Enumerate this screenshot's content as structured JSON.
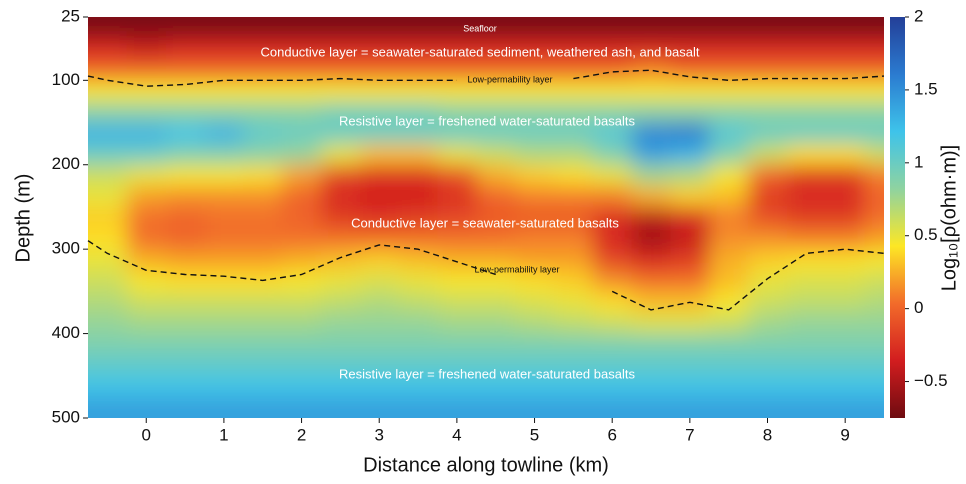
{
  "chart_data": {
    "type": "heatmap",
    "xlabel": "Distance along towline (km)",
    "ylabel": "Depth (m)",
    "colorbar_label": "Log₁₀[ρ(ohm·m)]",
    "xlim": [
      -0.75,
      9.5
    ],
    "xticks": [
      0,
      1,
      2,
      3,
      4,
      5,
      6,
      7,
      8,
      9
    ],
    "ylim": [
      500,
      25
    ],
    "yticks": [
      25,
      100,
      200,
      300,
      400,
      500
    ],
    "zlim": [
      -0.75,
      2
    ],
    "zticks": [
      {
        "value": -0.5,
        "label": "−0.5"
      },
      0,
      0.5,
      1,
      1.5,
      2
    ],
    "colormap": [
      "#6e0b10",
      "#d21d1f",
      "#f26b2a",
      "#fde725",
      "#8fd3a0",
      "#3ec3ea",
      "#2b7bd0",
      "#233f98"
    ],
    "x": [
      -0.5,
      0,
      0.5,
      1,
      1.5,
      2,
      2.5,
      3,
      3.5,
      4,
      4.5,
      5,
      5.5,
      6,
      6.5,
      7,
      7.5,
      8,
      8.5,
      9,
      9.5
    ],
    "y": [
      37.5,
      62.5,
      87.5,
      112.5,
      137.5,
      162.5,
      187.5,
      212.5,
      237.5,
      262.5,
      287.5,
      312.5,
      337.5,
      362.5,
      387.5,
      412.5,
      437.5,
      462.5,
      487.5
    ],
    "z": [
      [
        -0.7,
        -0.7,
        -0.7,
        -0.7,
        -0.7,
        -0.7,
        -0.7,
        -0.7,
        -0.7,
        -0.7,
        -0.7,
        -0.7,
        -0.7,
        -0.7,
        -0.7,
        -0.7,
        -0.7,
        -0.7,
        -0.7,
        -0.7,
        -0.7
      ],
      [
        -0.3,
        -0.4,
        -0.3,
        -0.3,
        -0.3,
        -0.3,
        -0.3,
        -0.3,
        -0.3,
        -0.3,
        -0.3,
        -0.3,
        -0.3,
        -0.3,
        -0.3,
        -0.3,
        -0.3,
        -0.3,
        -0.3,
        -0.3,
        -0.3
      ],
      [
        0,
        0,
        0,
        0,
        0,
        0,
        0,
        0,
        0,
        0,
        0,
        0,
        0,
        0,
        0.1,
        0,
        0,
        0,
        0,
        0,
        0
      ],
      [
        0.45,
        0.45,
        0.45,
        0.45,
        0.45,
        0.45,
        0.45,
        0.45,
        0.45,
        0.45,
        0.45,
        0.45,
        0.45,
        0.45,
        0.45,
        0.45,
        0.45,
        0.45,
        0.45,
        0.45,
        0.45
      ],
      [
        0.85,
        0.85,
        0.85,
        0.85,
        0.85,
        0.85,
        0.95,
        0.95,
        0.95,
        0.85,
        0.85,
        0.85,
        0.85,
        0.85,
        0.85,
        0.85,
        0.85,
        0.85,
        0.85,
        0.85,
        0.85
      ],
      [
        1.3,
        1.3,
        1.2,
        1.3,
        1.05,
        1.0,
        1.0,
        1.0,
        1.0,
        1.0,
        1.0,
        1.0,
        1.0,
        1.1,
        1.55,
        1.6,
        1.1,
        1.0,
        1.0,
        1.0,
        1.0
      ],
      [
        1.0,
        1.0,
        0.9,
        0.9,
        0.85,
        0.8,
        0.5,
        0.3,
        0.3,
        0.5,
        0.6,
        0.7,
        0.7,
        0.9,
        1.4,
        1.3,
        0.9,
        0.6,
        0.4,
        0.4,
        0.6
      ],
      [
        0.6,
        0.5,
        0.45,
        0.45,
        0.4,
        0.2,
        -0.15,
        -0.25,
        -0.25,
        -0.1,
        0.25,
        0.35,
        0.4,
        0.5,
        0.75,
        0.7,
        0.45,
        0.0,
        -0.2,
        -0.2,
        0.1
      ],
      [
        0.5,
        0.2,
        0.15,
        0.15,
        0.15,
        0.0,
        -0.3,
        -0.35,
        -0.35,
        -0.25,
        0.0,
        0.1,
        0.1,
        0.1,
        0.25,
        0.35,
        0.3,
        -0.2,
        -0.3,
        -0.3,
        0.0
      ],
      [
        0.35,
        0.05,
        0.0,
        0.05,
        0.05,
        0.0,
        -0.2,
        -0.25,
        -0.2,
        -0.15,
        -0.05,
        -0.05,
        -0.05,
        -0.25,
        -0.45,
        -0.3,
        0.1,
        -0.1,
        -0.2,
        -0.2,
        0.05
      ],
      [
        0.4,
        0.05,
        0.0,
        0.05,
        0.05,
        0.05,
        0.05,
        0.05,
        0.05,
        0.05,
        0.05,
        0.1,
        0.1,
        -0.3,
        -0.55,
        -0.4,
        0.15,
        0.15,
        0.1,
        0.1,
        0.2
      ],
      [
        0.5,
        0.25,
        0.2,
        0.2,
        0.2,
        0.25,
        0.3,
        0.35,
        0.3,
        0.25,
        0.25,
        0.2,
        0.2,
        -0.15,
        -0.3,
        -0.2,
        0.25,
        0.35,
        0.4,
        0.4,
        0.45
      ],
      [
        0.6,
        0.45,
        0.4,
        0.4,
        0.4,
        0.45,
        0.5,
        0.55,
        0.5,
        0.45,
        0.45,
        0.4,
        0.35,
        0.15,
        0.05,
        0.05,
        0.3,
        0.5,
        0.55,
        0.55,
        0.6
      ],
      [
        0.7,
        0.6,
        0.6,
        0.6,
        0.6,
        0.6,
        0.65,
        0.7,
        0.65,
        0.6,
        0.6,
        0.55,
        0.5,
        0.4,
        0.3,
        0.3,
        0.45,
        0.6,
        0.65,
        0.65,
        0.7
      ],
      [
        0.8,
        0.75,
        0.75,
        0.75,
        0.75,
        0.75,
        0.8,
        0.8,
        0.8,
        0.75,
        0.75,
        0.7,
        0.65,
        0.6,
        0.55,
        0.55,
        0.6,
        0.75,
        0.8,
        0.8,
        0.8
      ],
      [
        0.9,
        0.9,
        0.9,
        0.9,
        0.9,
        0.9,
        0.9,
        0.9,
        0.9,
        0.9,
        0.9,
        0.9,
        0.9,
        0.9,
        0.9,
        0.9,
        0.9,
        0.9,
        0.9,
        0.9,
        0.9
      ],
      [
        1.05,
        1.05,
        1.05,
        1.05,
        1.05,
        1.05,
        1.05,
        1.05,
        1.05,
        1.05,
        1.05,
        1.05,
        1.05,
        1.05,
        1.05,
        1.05,
        1.05,
        1.05,
        1.05,
        1.05,
        1.05
      ],
      [
        1.2,
        1.2,
        1.2,
        1.2,
        1.2,
        1.2,
        1.2,
        1.2,
        1.2,
        1.2,
        1.2,
        1.2,
        1.2,
        1.2,
        1.2,
        1.2,
        1.2,
        1.2,
        1.2,
        1.2,
        1.2
      ],
      [
        1.4,
        1.4,
        1.4,
        1.4,
        1.4,
        1.4,
        1.4,
        1.4,
        1.4,
        1.4,
        1.4,
        1.4,
        1.4,
        1.4,
        1.4,
        1.4,
        1.4,
        1.4,
        1.4,
        1.4,
        1.4
      ]
    ],
    "contours": [
      {
        "x": [
          -0.75,
          -0.5,
          0,
          0.5,
          1,
          1.5,
          2,
          2.5,
          3,
          3.5,
          4,
          4.5,
          5,
          5.5,
          6,
          6.5,
          7,
          7.5,
          8,
          8.5,
          9,
          9.5
        ],
        "y": [
          95,
          100,
          107,
          105,
          100,
          100,
          100,
          98,
          100,
          100,
          100,
          null,
          null,
          98,
          90,
          88,
          96,
          100,
          98,
          98,
          98,
          95
        ]
      },
      {
        "x": [
          -0.75,
          -0.5,
          0,
          0.5,
          1,
          1.5,
          2,
          2.5,
          3,
          3.5,
          4,
          4.5,
          5,
          5.5,
          6,
          6.5,
          7,
          7.5,
          8,
          8.5,
          9,
          9.5
        ],
        "y": [
          290,
          305,
          325,
          330,
          332,
          337,
          330,
          310,
          295,
          300,
          315,
          330,
          null,
          null,
          350,
          372,
          363,
          372,
          335,
          305,
          300,
          305
        ]
      }
    ],
    "annotations": [
      "Seafloor",
      "Conductive layer = seawater-saturated sediment, weathered ash, and basalt",
      "Low-permability layer",
      "Resistive layer = freshened water-saturated basalts",
      "Conductive layer = seawater-saturated basalts",
      "Low-permability layer",
      "Resistive layer = freshened water-saturated basalts"
    ]
  }
}
